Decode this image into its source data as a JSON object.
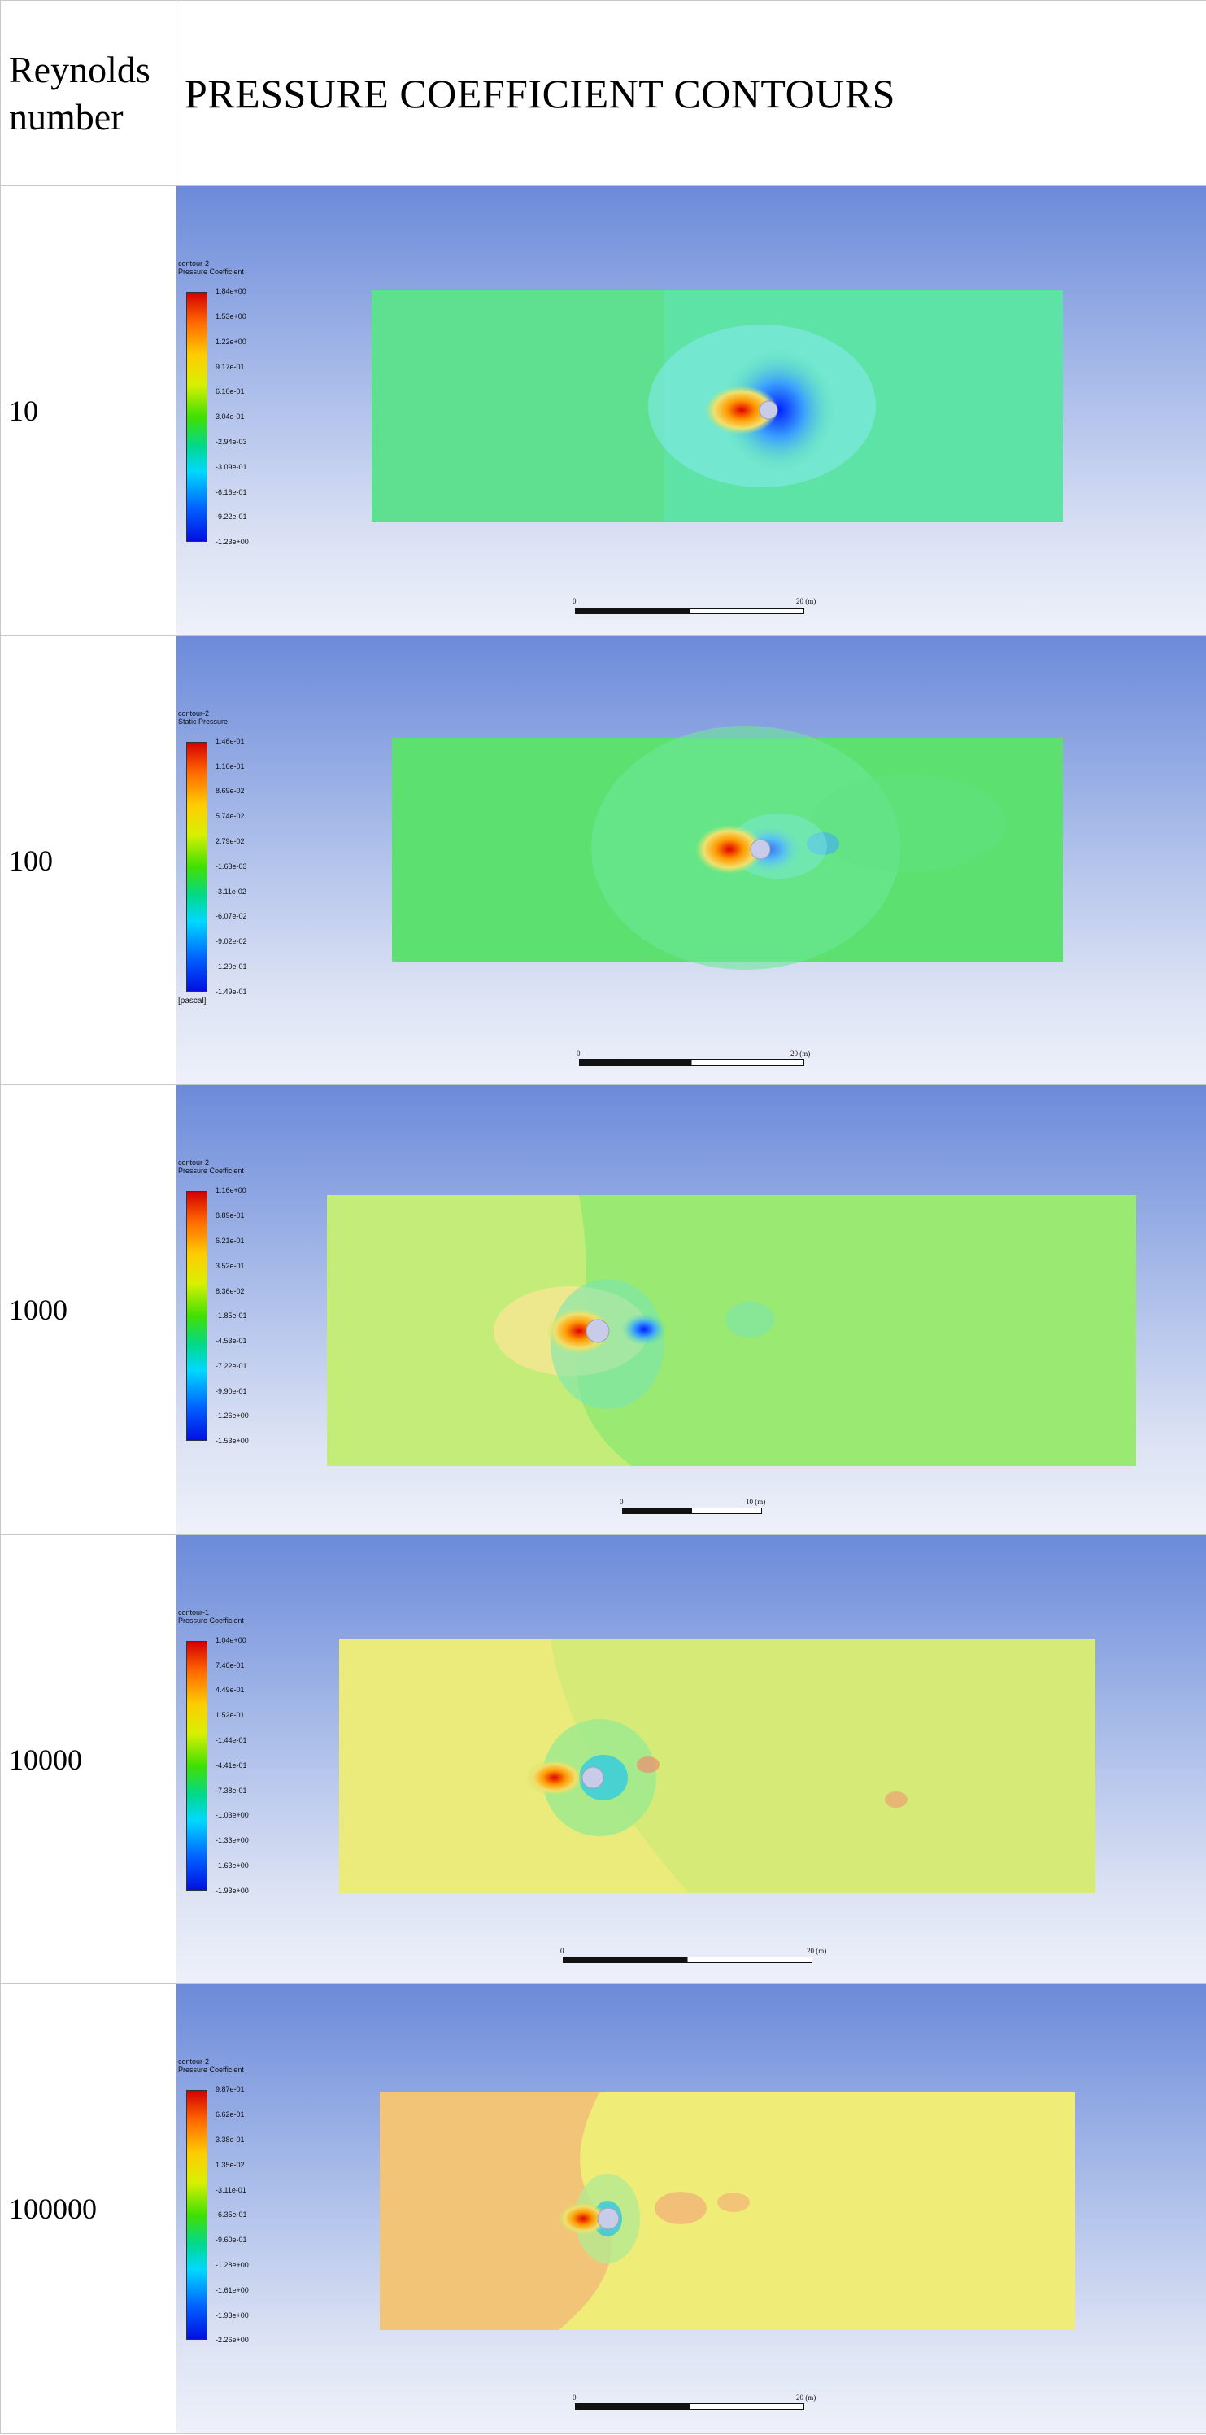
{
  "header": {
    "col1": "Reynolds number",
    "col2": "PRESSURE COEFFICIENT CONTOURS"
  },
  "rows": [
    {
      "re": "10",
      "legend_title": "contour-2",
      "legend_var": "Pressure Coefficient",
      "ticks": [
        "1.84e+00",
        "1.53e+00",
        "1.22e+00",
        "9.17e-01",
        "6.10e-01",
        "3.04e-01",
        "-2.94e-03",
        "-3.09e-01",
        "-6.16e-01",
        "-9.22e-01",
        "-1.23e+00"
      ],
      "unit": "",
      "scale_start": "0",
      "scale_end": "20 (m)"
    },
    {
      "re": "100",
      "legend_title": "contour-2",
      "legend_var": "Static Pressure",
      "ticks": [
        "1.46e-01",
        "1.16e-01",
        "8.69e-02",
        "5.74e-02",
        "2.79e-02",
        "-1.63e-03",
        "-3.11e-02",
        "-6.07e-02",
        "-9.02e-02",
        "-1.20e-01",
        "-1.49e-01"
      ],
      "unit": "[pascal]",
      "scale_start": "0",
      "scale_end": "20 (m)"
    },
    {
      "re": "1000",
      "legend_title": "contour-2",
      "legend_var": "Pressure Coefficient",
      "ticks": [
        "1.16e+00",
        "8.89e-01",
        "6.21e-01",
        "3.52e-01",
        "8.36e-02",
        "-1.85e-01",
        "-4.53e-01",
        "-7.22e-01",
        "-9.90e-01",
        "-1.26e+00",
        "-1.53e+00"
      ],
      "unit": "",
      "scale_start": "0",
      "scale_end": "10 (m)"
    },
    {
      "re": "10000",
      "legend_title": "contour-1",
      "legend_var": "Pressure Coefficient",
      "ticks": [
        "1.04e+00",
        "7.46e-01",
        "4.49e-01",
        "1.52e-01",
        "-1.44e-01",
        "-4.41e-01",
        "-7.38e-01",
        "-1.03e+00",
        "-1.33e+00",
        "-1.63e+00",
        "-1.93e+00"
      ],
      "unit": "",
      "scale_start": "0",
      "scale_end": "20 (m)"
    },
    {
      "re": "100000",
      "legend_title": "contour-2",
      "legend_var": "Pressure Coefficient",
      "ticks": [
        "9.87e-01",
        "6.62e-01",
        "3.38e-01",
        "1.35e-02",
        "-3.11e-01",
        "-6.35e-01",
        "-9.60e-01",
        "-1.28e+00",
        "-1.61e+00",
        "-1.93e+00",
        "-2.26e+00"
      ],
      "unit": "",
      "scale_start": "0",
      "scale_end": "20 (m)"
    }
  ]
}
